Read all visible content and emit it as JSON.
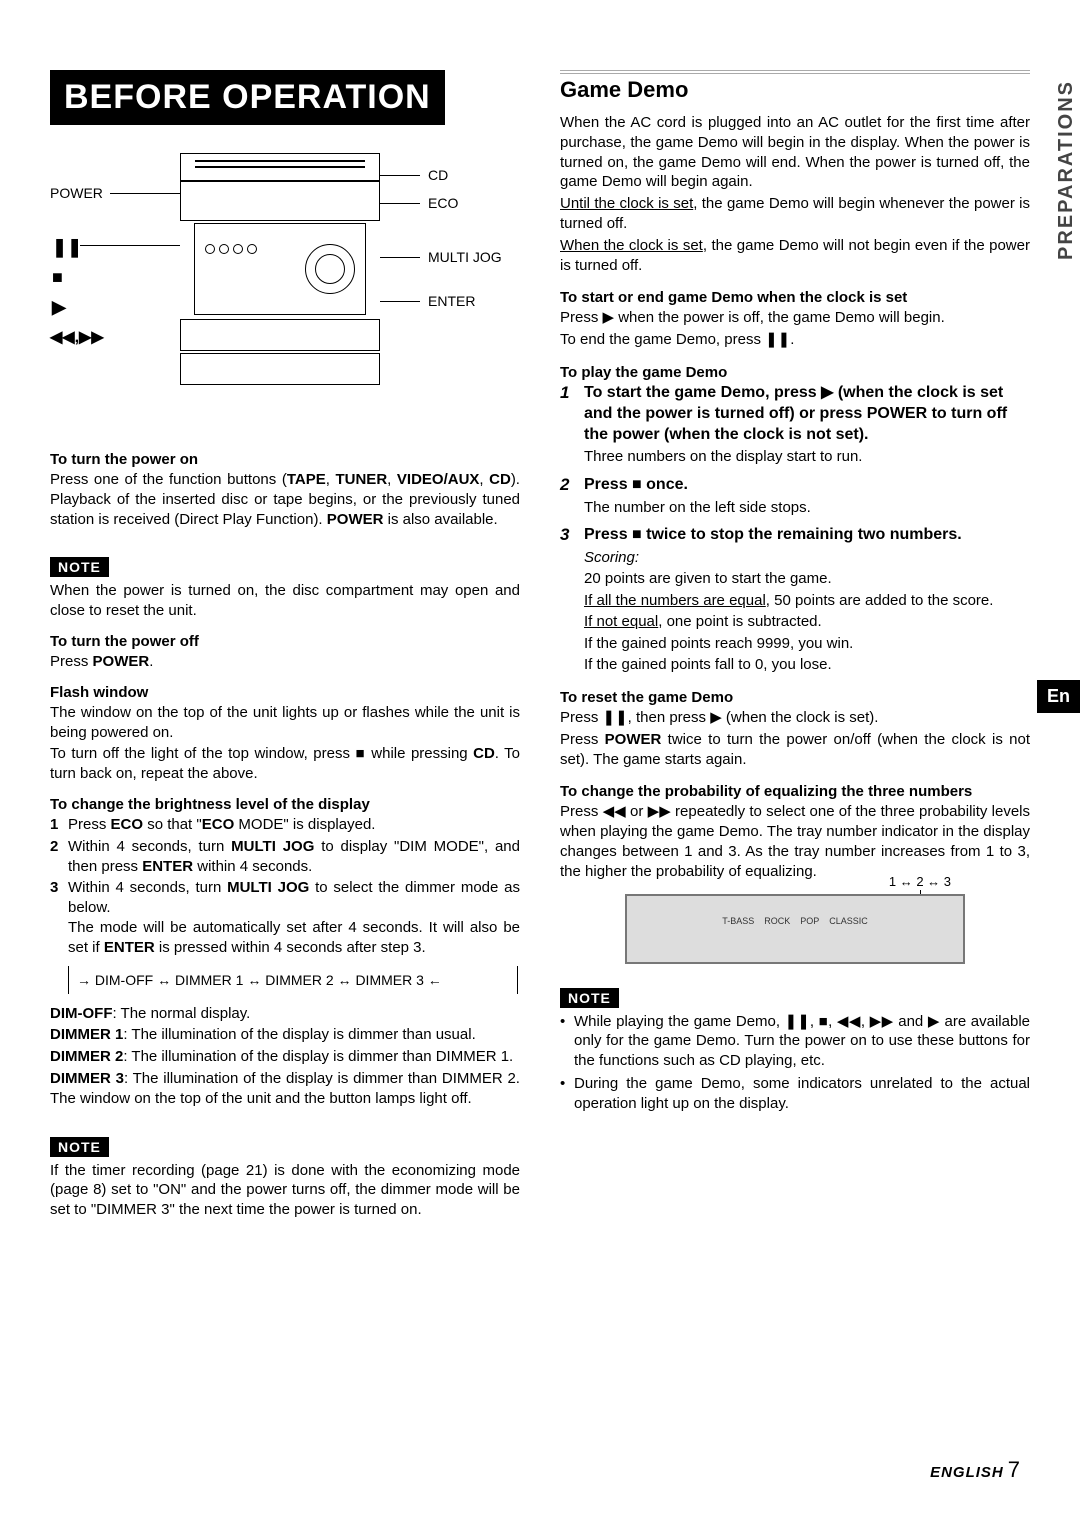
{
  "sideTab": "PREPARATIONS",
  "langTab": "En",
  "banner": "BEFORE OPERATION",
  "diagram": {
    "labels": {
      "power": "POWER",
      "cd": "CD",
      "eco": "ECO",
      "multijog": "MULTI JOG",
      "enter": "ENTER"
    },
    "symbols": {
      "pause": "❚❚",
      "stop": "■",
      "play": "▶",
      "rwff": "◀◀,▶▶"
    }
  },
  "left": {
    "powerOn": {
      "title": "To turn the power on",
      "body": "Press one of the function buttons (TAPE, TUNER, VIDEO/AUX, CD). Playback of the inserted disc or tape begins, or the previously tuned station is received (Direct Play Function). POWER is also available."
    },
    "note1": "When the power is turned on, the disc compartment may open and close to reset the unit.",
    "powerOff": {
      "title": "To turn the power off",
      "body": "Press POWER."
    },
    "flash": {
      "title": "Flash window",
      "p1": "The window on the top of the unit lights up or flashes while the unit is being powered on.",
      "p2": "To turn off the light of the top window, press ■ while pressing CD. To turn back on, repeat the above."
    },
    "bright": {
      "title": "To change the brightness level of the display",
      "s1": "Press ECO so that \"ECO MODE\" is displayed.",
      "s2": "Within 4 seconds, turn MULTI JOG to display \"DIM MODE\", and then press ENTER within 4 seconds.",
      "s3": "Within 4 seconds, turn MULTI JOG to select the dimmer mode as below.",
      "s3b": "The mode will be automatically set after 4 seconds. It will also be set if ENTER is pressed within 4 seconds after step 3.",
      "cycle": "→ DIM-OFF ↔ DIMMER 1 ↔ DIMMER 2 ↔ DIMMER 3 ←",
      "d0": "DIM-OFF: The normal display.",
      "d1": "DIMMER 1: The illumination of the display is dimmer than usual.",
      "d2": "DIMMER 2: The illumination of the display is dimmer than DIMMER 1.",
      "d3": "DIMMER 3: The illumination of the display is dimmer than DIMMER 2. The window on the top of the unit and the button lamps light off."
    },
    "note2": "If the timer recording (page 21) is done with the economizing mode (page 8) set to \"ON\" and the power turns off, the dimmer mode will be set to \"DIMMER 3\" the next time the power is turned on."
  },
  "right": {
    "title": "Game Demo",
    "intro": "When the AC cord is plugged into an AC outlet for the first time after purchase, the game Demo will begin in the display. When the power is turned on, the game Demo will end. When the power is turned off, the game Demo will begin again.",
    "u1": "Until the clock is set",
    "u1b": ", the game Demo will begin whenever the power is turned off.",
    "u2": "When the clock is set",
    "u2b": ", the game Demo will not begin even if the power is turned off.",
    "startEnd": {
      "title": "To start or end game Demo when the clock is set",
      "l1": "Press ▶ when the power is off, the game Demo will begin.",
      "l2": "To end the game Demo, press ❚❚."
    },
    "playTitle": "To play the game Demo",
    "steps": {
      "s1t": "To start the game Demo, press ▶ (when the clock is set and the power is turned off) or press POWER to turn off the power (when the clock is not set).",
      "s1d": "Three numbers on the display start to run.",
      "s2t": "Press ■ once.",
      "s2d": "The number on the left side stops.",
      "s3t": "Press ■ twice to stop the remaining two numbers.",
      "s3sc": "Scoring:",
      "s3a": "20 points are given to start the game.",
      "s3b": "If all the numbers are equal",
      "s3b2": ", 50 points are added to the score.",
      "s3c": "If not equal",
      "s3c2": ", one point is subtracted.",
      "s3d": "If the gained points reach 9999, you win.",
      "s3e": "If the gained points fall to 0, you lose."
    },
    "reset": {
      "title": "To reset the game Demo",
      "l1": "Press ❚❚, then press ▶ (when the clock is set).",
      "l2": "Press POWER twice to turn the power on/off (when the clock is not set). The game starts again."
    },
    "prob": {
      "title": "To change the probability of equalizing the three numbers",
      "body": "Press ◀◀ or ▶▶ repeatedly to select one of the three probability levels when playing the game Demo. The tray number indicator in the display changes between 1 and 3. As the tray number increases from 1 to 3, the higher the probability of equalizing."
    },
    "trayInd": "1 ↔ 2 ↔ 3",
    "dlabels": [
      "T-BASS",
      "ROCK",
      "POP",
      "CLASSIC"
    ],
    "noteBul1": "While playing the game Demo, ❚❚, ■, ◀◀, ▶▶ and ▶ are available only for the game Demo. Turn the power on to use these buttons for the functions such as CD playing, etc.",
    "noteBul2": "During the game Demo, some indicators unrelated to the actual operation light up on the display."
  },
  "footer": {
    "lang": "ENGLISH",
    "page": "7"
  },
  "noteLabel": "NOTE"
}
